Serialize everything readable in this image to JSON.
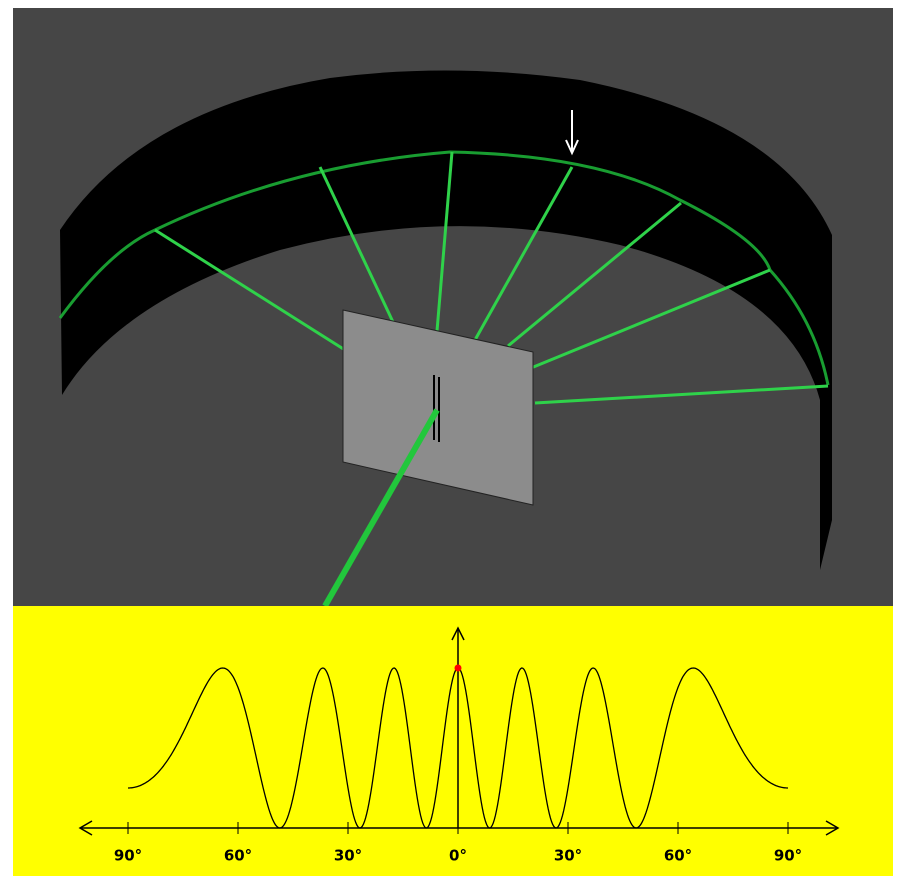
{
  "pattern_axis": {
    "tick_labels": [
      "90°",
      "60°",
      "30°",
      "0°",
      "30°",
      "60°",
      "90°"
    ]
  }
}
